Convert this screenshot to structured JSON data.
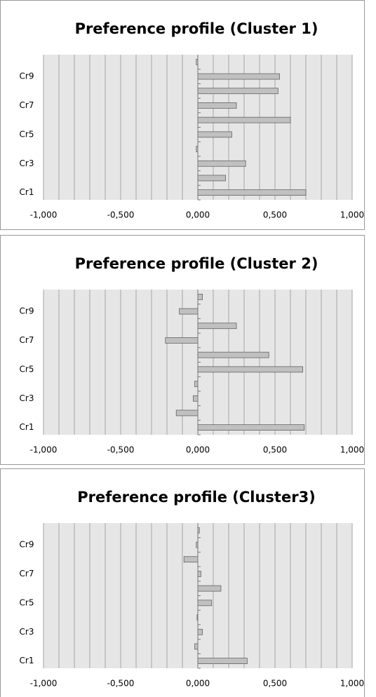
{
  "chart_data": [
    {
      "type": "barh",
      "title": "Preference profile (Cluster 1)",
      "categories": [
        "Cr1",
        null,
        "Cr3",
        null,
        "Cr5",
        null,
        "Cr7",
        null,
        "Cr9",
        null
      ],
      "values": [
        0.7,
        0.18,
        0.31,
        -0.01,
        0.22,
        0.6,
        0.25,
        0.52,
        0.53,
        -0.01
      ],
      "color": "#c0c0c0",
      "xlim": [
        -1,
        1
      ],
      "xticks": [
        {
          "value": -1,
          "label": "-1,000"
        },
        {
          "value": -0.5,
          "label": "-0,500"
        },
        {
          "value": 0,
          "label": "0,000"
        },
        {
          "value": 0.5,
          "label": "0,500"
        },
        {
          "value": 1,
          "label": "1,000"
        }
      ],
      "xgrid": [
        -1,
        -0.9,
        -0.8,
        -0.7,
        -0.6,
        -0.5,
        -0.4,
        -0.3,
        -0.2,
        -0.1,
        0,
        0.1,
        0.2,
        0.3,
        0.4,
        0.5,
        0.6,
        0.7,
        0.8,
        0.9,
        1
      ]
    },
    {
      "type": "barh",
      "title": "Preference profile (Cluster 2)",
      "categories": [
        "Cr1",
        null,
        "Cr3",
        null,
        "Cr5",
        null,
        "Cr7",
        null,
        "Cr9",
        null
      ],
      "values": [
        0.69,
        -0.14,
        -0.03,
        -0.02,
        0.68,
        0.46,
        -0.21,
        0.25,
        -0.12,
        0.03
      ],
      "color": "#c0c0c0",
      "xlim": [
        -1,
        1
      ],
      "xticks": [
        {
          "value": -1,
          "label": "-1,000"
        },
        {
          "value": -0.5,
          "label": "-0,500"
        },
        {
          "value": 0,
          "label": "0,000"
        },
        {
          "value": 0.5,
          "label": "0,500"
        },
        {
          "value": 1,
          "label": "1,000"
        }
      ],
      "xgrid": [
        -1,
        -0.9,
        -0.8,
        -0.7,
        -0.6,
        -0.5,
        -0.4,
        -0.3,
        -0.2,
        -0.1,
        0,
        0.1,
        0.2,
        0.3,
        0.4,
        0.5,
        0.6,
        0.7,
        0.8,
        0.9,
        1
      ]
    },
    {
      "type": "barh",
      "title": "Preference profile (Cluster3)",
      "categories": [
        "Cr1",
        null,
        "Cr3",
        null,
        "Cr5",
        null,
        "Cr7",
        null,
        "Cr9",
        null
      ],
      "values": [
        0.32,
        -0.02,
        0.03,
        -0.005,
        0.09,
        0.15,
        0.02,
        -0.09,
        -0.01,
        0.01
      ],
      "color": "#c0c0c0",
      "xlim": [
        -1,
        1
      ],
      "xticks": [
        {
          "value": -1,
          "label": "-1,000"
        },
        {
          "value": -0.5,
          "label": "-0,500"
        },
        {
          "value": 0,
          "label": "0,000"
        },
        {
          "value": 0.5,
          "label": "0,500"
        },
        {
          "value": 1,
          "label": "1,000"
        }
      ],
      "xgrid": [
        -1,
        -0.9,
        -0.8,
        -0.7,
        -0.6,
        -0.5,
        -0.4,
        -0.3,
        -0.2,
        -0.1,
        0,
        0.1,
        0.2,
        0.3,
        0.4,
        0.5,
        0.6,
        0.7,
        0.8,
        0.9,
        1
      ]
    }
  ]
}
